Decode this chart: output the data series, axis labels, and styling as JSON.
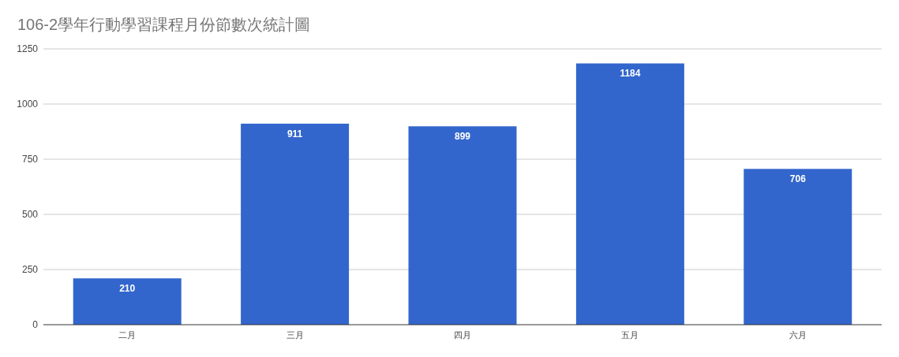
{
  "chart_data": {
    "type": "bar",
    "title": "106-2學年行動學習課程月份節數次統計圖",
    "categories": [
      "二月",
      "三月",
      "四月",
      "五月",
      "六月"
    ],
    "values": [
      210,
      911,
      899,
      1184,
      706
    ],
    "color": "#3366cc",
    "ylim": [
      0,
      1250
    ],
    "yticks": [
      0,
      250,
      500,
      750,
      1000,
      1250
    ],
    "grid": "y",
    "data_labels": true
  }
}
